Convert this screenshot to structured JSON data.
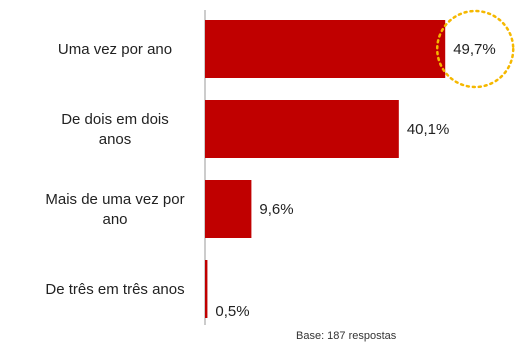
{
  "chart_data": {
    "type": "bar",
    "orientation": "horizontal",
    "categories": [
      "Uma vez por ano",
      "De dois em dois anos",
      "Mais de uma vez por ano",
      "De três em três anos"
    ],
    "category_lines": [
      [
        "Uma vez por ano"
      ],
      [
        "De dois em dois",
        "anos"
      ],
      [
        "Mais de uma vez por",
        "ano"
      ],
      [
        "De três em três anos"
      ]
    ],
    "values": [
      49.7,
      40.1,
      9.6,
      0.5
    ],
    "value_labels": [
      "49,7%",
      "40,1%",
      "9,6%",
      "0,5%"
    ],
    "highlighted_category": "Uma vez por ano",
    "xlim": [
      0,
      60
    ],
    "grid": false,
    "colors": {
      "bar": "#c00000",
      "highlight_ring": "#f5b800",
      "axis": "#999999"
    }
  },
  "footnote": "Base: 187 respostas"
}
